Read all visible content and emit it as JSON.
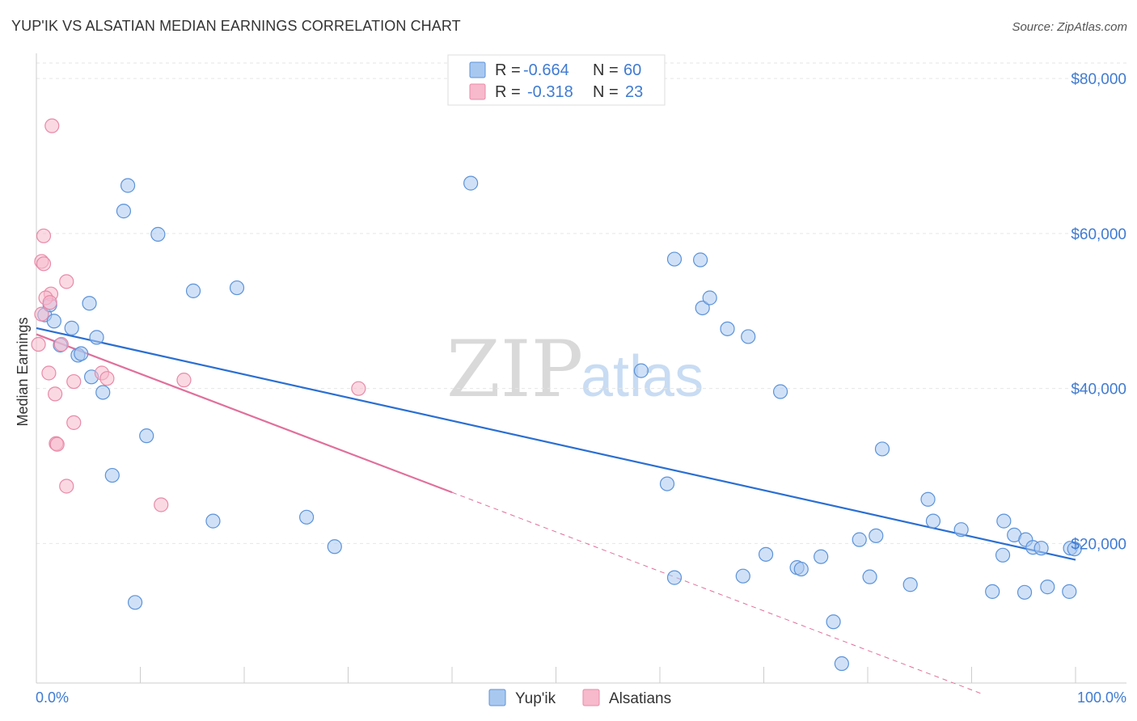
{
  "header": {
    "title": "YUP'IK VS ALSATIAN MEDIAN EARNINGS CORRELATION CHART",
    "source": "Source: ZipAtlas.com"
  },
  "watermark": {
    "zip": "ZIP",
    "atlas": "atlas"
  },
  "legend": {
    "rows": [
      {
        "r_label": "R =",
        "r_value": "-0.664",
        "n_label": "N =",
        "n_value": "60",
        "color": "#a9c8f0"
      },
      {
        "r_label": "R =",
        "r_value": "-0.318",
        "n_label": "N =",
        "n_value": "23",
        "color": "#f7b9cc"
      }
    ]
  },
  "bottom_legend": [
    "Yup'ik",
    "Alsatians"
  ],
  "colors": {
    "blue_fill": "#a9c8f0",
    "blue_stroke": "#5c93d9",
    "blue_line": "#2b6fd1",
    "pink_fill": "#f7b9cc",
    "pink_stroke": "#e88aa8",
    "pink_line": "#e0709a"
  },
  "chart_data": {
    "type": "scatter",
    "title": "YUP'IK VS ALSATIAN MEDIAN EARNINGS CORRELATION CHART",
    "xlabel": "",
    "ylabel": "Median Earnings",
    "x_tick_labels": [
      "0.0%",
      "100.0%"
    ],
    "y_tick_labels": [
      "$20,000",
      "$40,000",
      "$60,000",
      "$80,000"
    ],
    "y_ticks": [
      20000,
      40000,
      60000,
      80000
    ],
    "xlim": [
      0,
      100
    ],
    "ylim": [
      2000,
      82000
    ],
    "series": [
      {
        "name": "Yup'ik",
        "color": "#a9c8f0",
        "trend": {
          "x0": 0,
          "y0": 47800,
          "x1": 100,
          "y1": 17900
        },
        "points": [
          [
            0.8,
            49500
          ],
          [
            1.3,
            50800
          ],
          [
            1.7,
            48700
          ],
          [
            3.4,
            47800
          ],
          [
            2.3,
            45600
          ],
          [
            5.1,
            51000
          ],
          [
            5.8,
            46600
          ],
          [
            4.0,
            44300
          ],
          [
            4.3,
            44500
          ],
          [
            5.3,
            41500
          ],
          [
            6.4,
            39500
          ],
          [
            8.8,
            66200
          ],
          [
            8.4,
            62900
          ],
          [
            11.7,
            59900
          ],
          [
            15.1,
            52600
          ],
          [
            19.3,
            53000
          ],
          [
            10.6,
            33900
          ],
          [
            7.3,
            28800
          ],
          [
            17.0,
            22900
          ],
          [
            26.0,
            23400
          ],
          [
            28.7,
            19600
          ],
          [
            9.5,
            12400
          ],
          [
            41.8,
            66500
          ],
          [
            60.7,
            27700
          ],
          [
            58.2,
            42300
          ],
          [
            61.4,
            15600
          ],
          [
            64.1,
            50400
          ],
          [
            64.8,
            51700
          ],
          [
            61.4,
            56700
          ],
          [
            63.9,
            56600
          ],
          [
            66.5,
            47700
          ],
          [
            68.0,
            15800
          ],
          [
            68.5,
            46700
          ],
          [
            70.2,
            18600
          ],
          [
            71.6,
            39600
          ],
          [
            73.2,
            16900
          ],
          [
            73.6,
            16700
          ],
          [
            75.5,
            18300
          ],
          [
            76.7,
            9900
          ],
          [
            77.5,
            4500
          ],
          [
            79.2,
            20500
          ],
          [
            80.2,
            15700
          ],
          [
            80.8,
            21000
          ],
          [
            81.4,
            32200
          ],
          [
            84.1,
            14700
          ],
          [
            85.8,
            25700
          ],
          [
            86.3,
            22900
          ],
          [
            89.0,
            21800
          ],
          [
            92.0,
            13800
          ],
          [
            93.1,
            22900
          ],
          [
            93.0,
            18500
          ],
          [
            94.1,
            21100
          ],
          [
            95.1,
            13700
          ],
          [
            95.2,
            20500
          ],
          [
            95.9,
            19500
          ],
          [
            96.7,
            19400
          ],
          [
            97.3,
            14400
          ],
          [
            99.4,
            13800
          ],
          [
            99.5,
            19400
          ],
          [
            99.9,
            19300
          ]
        ]
      },
      {
        "name": "Alsatians",
        "color": "#f7b9cc",
        "trend": {
          "x0": 0,
          "y0": 47000,
          "x1": 40,
          "y1": 26600,
          "dashed_to_x": 91,
          "dashed_to_y": 600
        },
        "points": [
          [
            1.5,
            73900
          ],
          [
            0.7,
            59700
          ],
          [
            0.5,
            56400
          ],
          [
            0.7,
            56100
          ],
          [
            2.9,
            53800
          ],
          [
            1.4,
            52200
          ],
          [
            0.9,
            51700
          ],
          [
            1.3,
            51100
          ],
          [
            0.5,
            49600
          ],
          [
            0.2,
            45700
          ],
          [
            2.4,
            45700
          ],
          [
            1.2,
            42000
          ],
          [
            3.6,
            40900
          ],
          [
            6.3,
            42000
          ],
          [
            6.8,
            41300
          ],
          [
            14.2,
            41100
          ],
          [
            31.0,
            40000
          ],
          [
            1.8,
            39300
          ],
          [
            3.6,
            35600
          ],
          [
            1.9,
            32900
          ],
          [
            2.0,
            32800
          ],
          [
            2.9,
            27400
          ],
          [
            12.0,
            25000
          ]
        ]
      }
    ]
  }
}
